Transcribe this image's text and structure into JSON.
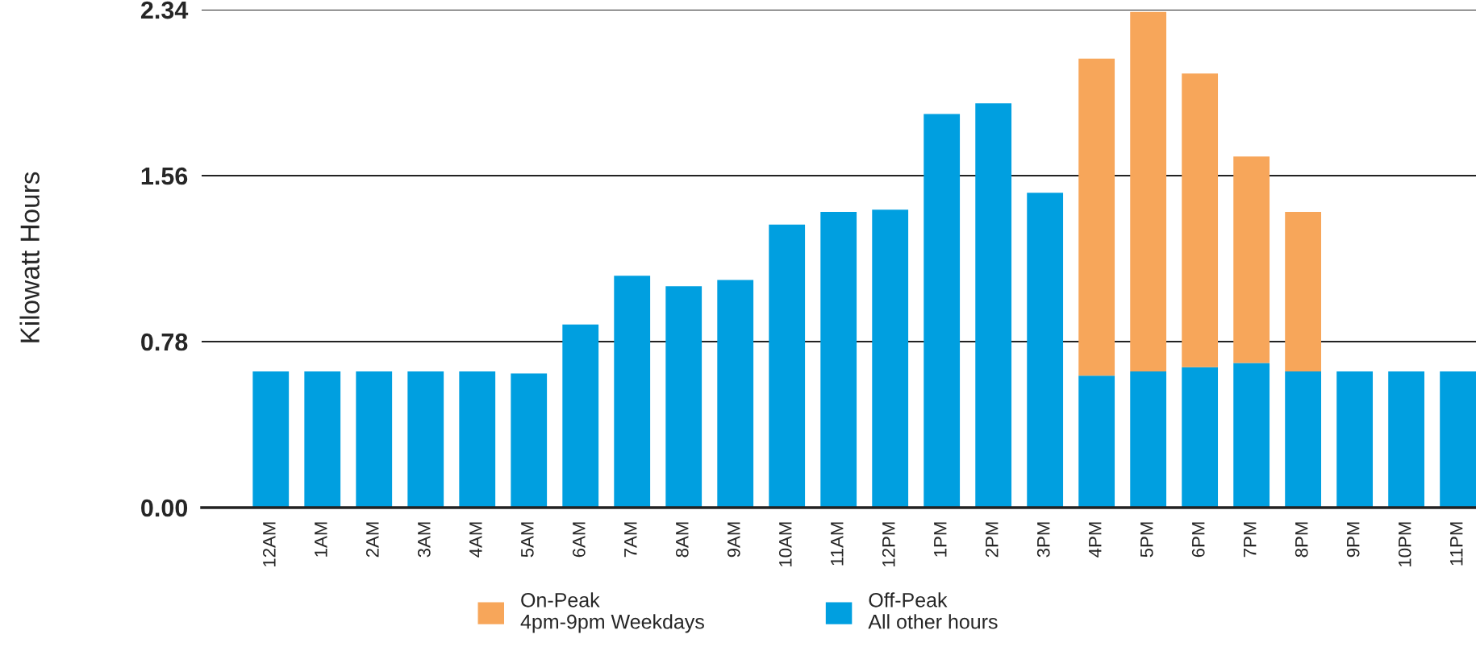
{
  "chart_data": {
    "type": "bar",
    "ylabel": "Kilowatt Hours",
    "stacked": true,
    "categories": [
      "12AM",
      "1AM",
      "2AM",
      "3AM",
      "4AM",
      "5AM",
      "6AM",
      "7AM",
      "8AM",
      "9AM",
      "10AM",
      "11AM",
      "12PM",
      "1PM",
      "2PM",
      "3PM",
      "4PM",
      "5PM",
      "6PM",
      "7PM",
      "8PM",
      "9PM",
      "10PM",
      "11PM"
    ],
    "series": [
      {
        "name": "Off-Peak\nAll other hours",
        "color": "#009fe0",
        "values": [
          0.64,
          0.64,
          0.64,
          0.64,
          0.64,
          0.63,
          0.86,
          1.09,
          1.04,
          1.07,
          1.33,
          1.39,
          1.4,
          1.85,
          1.9,
          1.48,
          0.62,
          0.64,
          0.66,
          0.68,
          0.64,
          0.64,
          0.64,
          0.64
        ]
      },
      {
        "name": "On-Peak\n4pm-9pm Weekdays",
        "color": "#f7a65a",
        "values": [
          null,
          null,
          null,
          null,
          null,
          null,
          null,
          null,
          null,
          null,
          null,
          null,
          null,
          null,
          null,
          null,
          1.49,
          1.69,
          1.38,
          0.97,
          0.75,
          null,
          null,
          null
        ]
      }
    ],
    "ylim": [
      0,
      2.34
    ],
    "yticks": [
      {
        "value": 0,
        "label": "0.00"
      },
      0.78,
      1.56,
      2.34
    ],
    "grid": "y",
    "legend": "bottom"
  }
}
